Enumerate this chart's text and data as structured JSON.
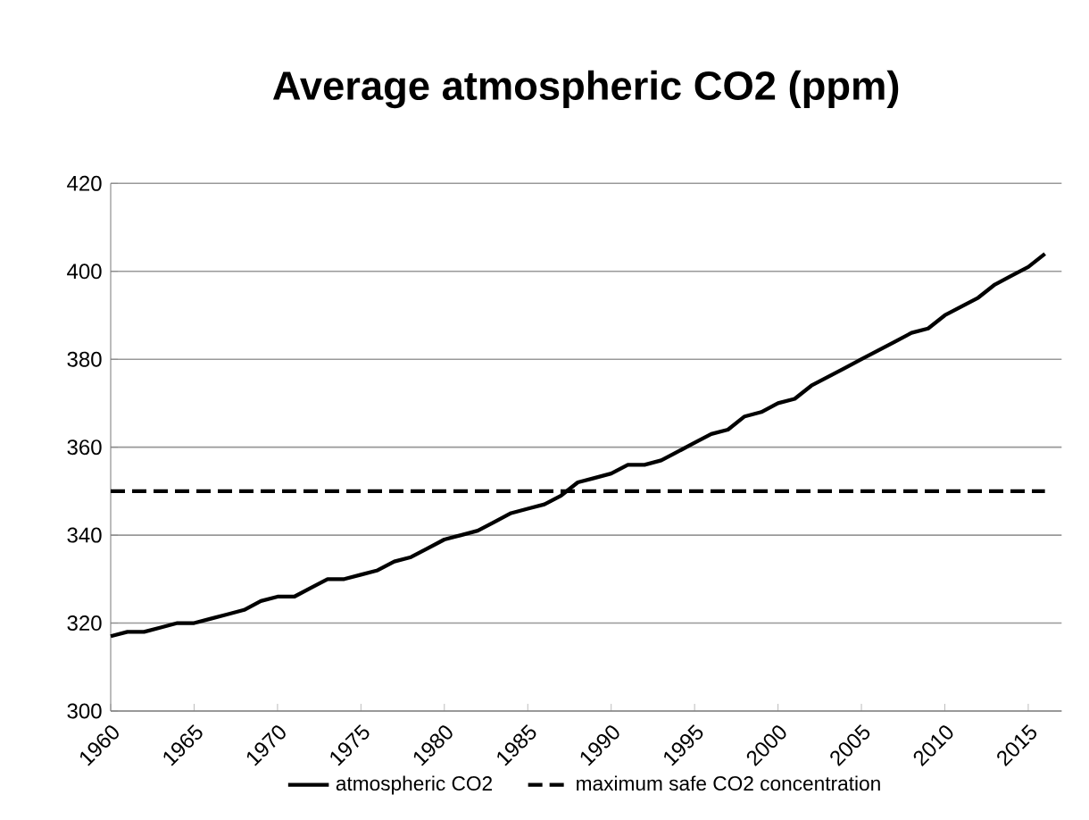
{
  "chart_data": {
    "type": "line",
    "title": "Average atmospheric CO2 (ppm)",
    "x": [
      1960,
      1961,
      1962,
      1963,
      1964,
      1965,
      1966,
      1967,
      1968,
      1969,
      1970,
      1971,
      1972,
      1973,
      1974,
      1975,
      1976,
      1977,
      1978,
      1979,
      1980,
      1981,
      1982,
      1983,
      1984,
      1985,
      1986,
      1987,
      1988,
      1989,
      1990,
      1991,
      1992,
      1993,
      1994,
      1995,
      1996,
      1997,
      1998,
      1999,
      2000,
      2001,
      2002,
      2003,
      2004,
      2005,
      2006,
      2007,
      2008,
      2009,
      2010,
      2011,
      2012,
      2013,
      2014,
      2015,
      2016
    ],
    "series": [
      {
        "name": "atmospheric CO2",
        "color": "#000000",
        "line_style": "solid",
        "values": [
          317,
          318,
          318,
          319,
          320,
          320,
          321,
          322,
          323,
          325,
          326,
          326,
          328,
          330,
          330,
          331,
          332,
          334,
          335,
          337,
          339,
          340,
          341,
          343,
          345,
          346,
          347,
          349,
          352,
          353,
          354,
          356,
          356,
          357,
          359,
          361,
          363,
          364,
          367,
          368,
          370,
          371,
          374,
          376,
          378,
          380,
          382,
          384,
          386,
          387,
          390,
          392,
          394,
          397,
          399,
          401,
          404
        ]
      },
      {
        "name": "maximum safe CO2 concentration",
        "color": "#000000",
        "line_style": "dashed",
        "x": [
          1960,
          2016
        ],
        "values": [
          350,
          350
        ]
      }
    ],
    "xlim": [
      1960,
      2017
    ],
    "ylim": [
      300,
      420
    ],
    "xticks": [
      1960,
      1965,
      1970,
      1975,
      1980,
      1985,
      1990,
      1995,
      2000,
      2005,
      2010,
      2015
    ],
    "yticks": [
      300,
      320,
      340,
      360,
      380,
      400,
      420
    ],
    "grid": "y",
    "legend": "bottom"
  }
}
